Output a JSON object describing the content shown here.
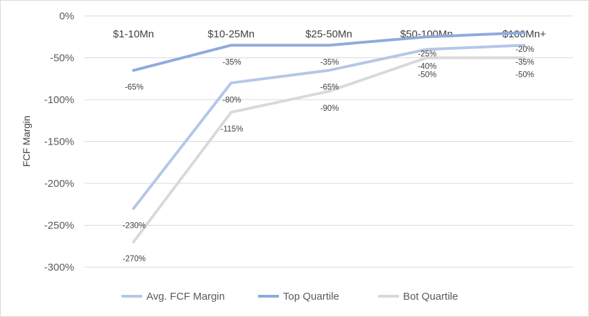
{
  "chart_data": {
    "type": "line",
    "title": "",
    "xlabel": "",
    "ylabel": "FCF Margin",
    "categories": [
      "$1-10Mn",
      "$10-25Mn",
      "$25-50Mn",
      "$50-100Mn",
      "$100Mn+"
    ],
    "ylim": [
      -300,
      0
    ],
    "y_ticks": [
      0,
      -50,
      -100,
      -150,
      -200,
      -250,
      -300
    ],
    "y_tick_labels": [
      "0%",
      "-50%",
      "-100%",
      "-150%",
      "-200%",
      "-250%",
      "-300%"
    ],
    "grid": true,
    "legend_position": "bottom",
    "series": [
      {
        "name": "Avg. FCF Margin",
        "color": "#b4c7e7",
        "values": [
          -230,
          -80,
          -65,
          -40,
          -35
        ],
        "labels": [
          "-230%",
          "-80%",
          "-65%",
          "-40%",
          "-35%"
        ]
      },
      {
        "name": "Top Quartile",
        "color": "#8faadc",
        "values": [
          -65,
          -35,
          -35,
          -25,
          -20
        ],
        "labels": [
          "-65%",
          "-35%",
          "-35%",
          "-25%",
          "-20%"
        ]
      },
      {
        "name": "Bot Quartile",
        "color": "#d9d9d9",
        "values": [
          -270,
          -115,
          -90,
          -50,
          -50
        ],
        "labels": [
          "-270%",
          "-115%",
          "-90%",
          "-50%",
          "-50%"
        ]
      }
    ]
  }
}
